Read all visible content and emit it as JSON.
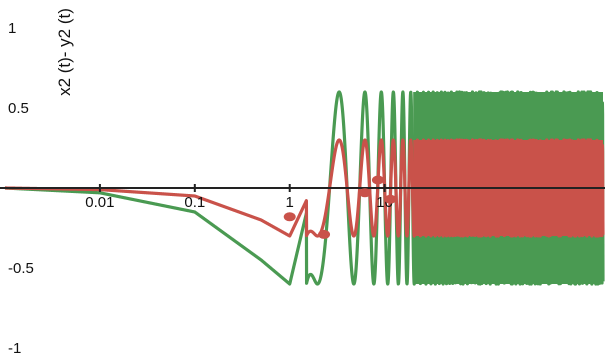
{
  "chart_data": {
    "type": "line",
    "title": "",
    "xlabel": "",
    "ylabel": "x2 (t)- y2 (t)",
    "x_scale": "log",
    "xlim": [
      0.001,
      2000
    ],
    "ylim": [
      -1.1,
      1.1
    ],
    "x_ticks": [
      "0.01",
      "0.1",
      "1",
      "10"
    ],
    "x_tick_values": [
      0.01,
      0.1,
      1,
      10
    ],
    "y_ticks": [
      "1",
      "0.5",
      "-0.5",
      "-1"
    ],
    "y_tick_values": [
      1,
      0.5,
      -0.5,
      -1
    ],
    "grid": false,
    "series": [
      {
        "color": "#4a9a52",
        "amplitude": 0.6,
        "oscillation_onset": 1.5,
        "envelope_points": [
          [
            0.001,
            0
          ],
          [
            0.01,
            -0.03
          ],
          [
            0.1,
            -0.15
          ],
          [
            0.5,
            -0.45
          ],
          [
            1,
            -0.6
          ],
          [
            3,
            0.6
          ],
          [
            20,
            0.6
          ],
          [
            2000,
            0.6
          ]
        ]
      },
      {
        "color": "#c9524a",
        "amplitude": 0.3,
        "oscillation_onset": 1.5,
        "envelope_points": [
          [
            0.001,
            0
          ],
          [
            0.01,
            -0.01
          ],
          [
            0.1,
            -0.05
          ],
          [
            0.5,
            -0.2
          ],
          [
            1,
            -0.3
          ],
          [
            3,
            0.3
          ],
          [
            20,
            0.3
          ],
          [
            2000,
            0.3
          ]
        ]
      }
    ],
    "markers": [
      {
        "color": "#c9524a",
        "x": 1.0,
        "y": -0.18
      },
      {
        "color": "#c9524a",
        "x": 2.3,
        "y": -0.29
      },
      {
        "color": "#c9524a",
        "x": 6.2,
        "y": -0.03
      },
      {
        "color": "#c9524a",
        "x": 8.5,
        "y": 0.05
      },
      {
        "color": "#c9524a",
        "x": 11.5,
        "y": -0.07
      }
    ]
  }
}
